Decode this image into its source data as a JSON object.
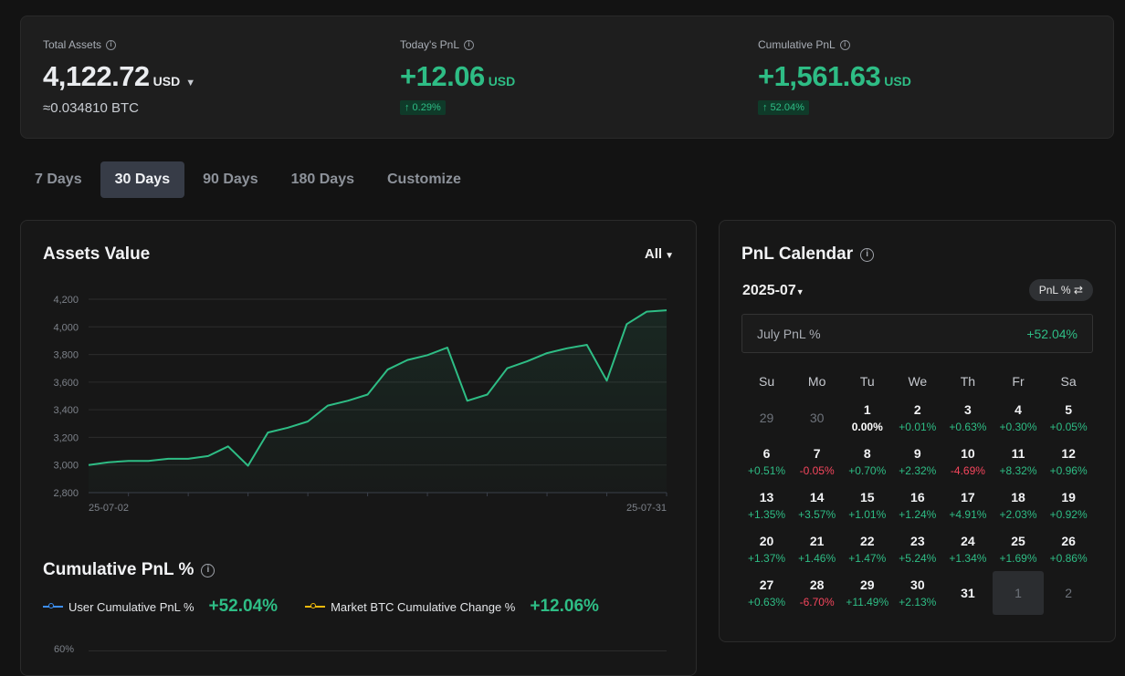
{
  "summary": {
    "total_assets": {
      "label": "Total Assets",
      "value": "4,122.72",
      "currency": "USD",
      "btc": "≈0.034810 BTC"
    },
    "today_pnl": {
      "label": "Today's PnL",
      "value": "+12.06",
      "currency": "USD",
      "pct": "↑ 0.29%"
    },
    "cumulative_pnl": {
      "label": "Cumulative PnL",
      "value": "+1,561.63",
      "currency": "USD",
      "pct": "↑ 52.04%"
    }
  },
  "tabs": [
    "7 Days",
    "30 Days",
    "90 Days",
    "180 Days",
    "Customize"
  ],
  "active_tab": "30 Days",
  "assets_panel": {
    "title": "Assets Value",
    "range": "All"
  },
  "chart_data": {
    "type": "area",
    "title": "Assets Value",
    "xlabel": "",
    "ylabel": "",
    "ylim": [
      2800,
      4200
    ],
    "yticks": [
      "4,200",
      "4,000",
      "3,800",
      "3,600",
      "3,400",
      "3,200",
      "3,000",
      "2,800"
    ],
    "xtick_labels": [
      "25-07-02",
      "25-07-31"
    ],
    "series": [
      {
        "values": [
          3000,
          3020,
          3030,
          3030,
          3045,
          3045,
          3065,
          3135,
          2995,
          3235,
          3270,
          3315,
          3430,
          3465,
          3510,
          3690,
          3760,
          3795,
          3850,
          3465,
          3510,
          3700,
          3750,
          3810,
          3845,
          3870,
          3610,
          4020,
          4110,
          4120
        ]
      }
    ],
    "color": "#2ebd85"
  },
  "cum_panel": {
    "title": "Cumulative PnL %",
    "legend": [
      {
        "label": "User Cumulative PnL %",
        "value": "+52.04%",
        "color": "#3d8ef0"
      },
      {
        "label": "Market BTC Cumulative Change %",
        "value": "+12.06%",
        "color": "#f0b90b"
      }
    ],
    "first_tick": "60%"
  },
  "calendar": {
    "title": "PnL Calendar",
    "month": "2025-07",
    "toggle": "PnL % ⇄",
    "month_label": "July PnL %",
    "month_value": "+52.04%",
    "weekdays": [
      "Su",
      "Mo",
      "Tu",
      "We",
      "Th",
      "Fr",
      "Sa"
    ],
    "cells": [
      {
        "d": "29",
        "p": "",
        "s": "muted"
      },
      {
        "d": "30",
        "p": "",
        "s": "muted"
      },
      {
        "d": "1",
        "p": "0.00%",
        "s": "neutral"
      },
      {
        "d": "2",
        "p": "+0.01%",
        "s": "green"
      },
      {
        "d": "3",
        "p": "+0.63%",
        "s": "green"
      },
      {
        "d": "4",
        "p": "+0.30%",
        "s": "green"
      },
      {
        "d": "5",
        "p": "+0.05%",
        "s": "green"
      },
      {
        "d": "6",
        "p": "+0.51%",
        "s": "green"
      },
      {
        "d": "7",
        "p": "-0.05%",
        "s": "red"
      },
      {
        "d": "8",
        "p": "+0.70%",
        "s": "green"
      },
      {
        "d": "9",
        "p": "+2.32%",
        "s": "green"
      },
      {
        "d": "10",
        "p": "-4.69%",
        "s": "red"
      },
      {
        "d": "11",
        "p": "+8.32%",
        "s": "green"
      },
      {
        "d": "12",
        "p": "+0.96%",
        "s": "green"
      },
      {
        "d": "13",
        "p": "+1.35%",
        "s": "green"
      },
      {
        "d": "14",
        "p": "+3.57%",
        "s": "green"
      },
      {
        "d": "15",
        "p": "+1.01%",
        "s": "green"
      },
      {
        "d": "16",
        "p": "+1.24%",
        "s": "green"
      },
      {
        "d": "17",
        "p": "+4.91%",
        "s": "green"
      },
      {
        "d": "18",
        "p": "+2.03%",
        "s": "green"
      },
      {
        "d": "19",
        "p": "+0.92%",
        "s": "green"
      },
      {
        "d": "20",
        "p": "+1.37%",
        "s": "green"
      },
      {
        "d": "21",
        "p": "+1.46%",
        "s": "green"
      },
      {
        "d": "22",
        "p": "+1.47%",
        "s": "green"
      },
      {
        "d": "23",
        "p": "+5.24%",
        "s": "green"
      },
      {
        "d": "24",
        "p": "+1.34%",
        "s": "green"
      },
      {
        "d": "25",
        "p": "+1.69%",
        "s": "green"
      },
      {
        "d": "26",
        "p": "+0.86%",
        "s": "green"
      },
      {
        "d": "27",
        "p": "+0.63%",
        "s": "green"
      },
      {
        "d": "28",
        "p": "-6.70%",
        "s": "red"
      },
      {
        "d": "29",
        "p": "+11.49%",
        "s": "green"
      },
      {
        "d": "30",
        "p": "+2.13%",
        "s": "green"
      },
      {
        "d": "31",
        "p": "",
        "s": "nop"
      },
      {
        "d": "1",
        "p": "",
        "s": "muted sel"
      },
      {
        "d": "2",
        "p": "",
        "s": "muted"
      }
    ]
  }
}
